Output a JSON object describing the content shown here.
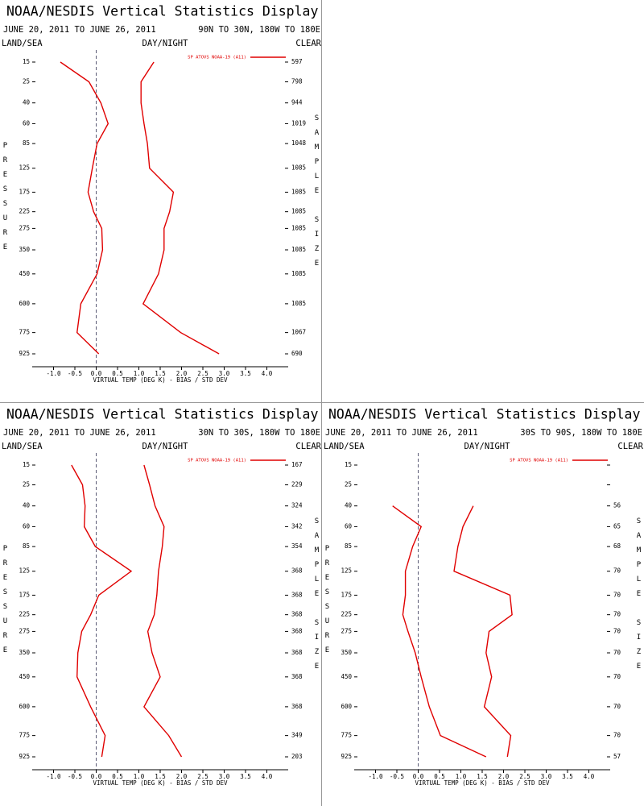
{
  "chart_data": [
    {
      "type": "line",
      "title": "NOAA/NESDIS Vertical Statistics Display",
      "subtitle": "JUNE 20, 2011 TO JUNE 26, 2011",
      "region": "90N TO 30N, 180W TO 180E",
      "land_sea": "LAND/SEA",
      "day_night": "DAY/NIGHT",
      "clear": "CLEAR",
      "xlabel": "VIRTUAL TEMP (DEG K) - BIAS / STD DEV",
      "ylabel": "PRESSURE",
      "y2label": "SAMPLE SIZE",
      "xlim": [
        -1.5,
        4.5
      ],
      "xticks": [
        {
          "value": -1,
          "label": "-1.0"
        },
        -0.5,
        {
          "value": 0,
          "label": "0.0"
        },
        0.5,
        {
          "value": 1,
          "label": "1.0"
        },
        1.5,
        {
          "value": 2,
          "label": "2.0"
        },
        2.5,
        {
          "value": 3,
          "label": "3.0"
        },
        3.5,
        {
          "value": 4,
          "label": "4.0"
        }
      ],
      "ylim": [
        15,
        925
      ],
      "yticks": [
        15,
        25,
        40,
        60,
        85,
        125,
        175,
        225,
        275,
        350,
        450,
        600,
        775,
        925
      ],
      "y": [
        15,
        25,
        40,
        60,
        85,
        125,
        175,
        225,
        275,
        350,
        450,
        600,
        775,
        925
      ],
      "series": [
        {
          "name": "SP ATOVS NOAA-19 (A11)",
          "color": "#e00000",
          "values": [
            -0.84,
            -0.17,
            0.11,
            0.28,
            0.02,
            -0.09,
            -0.19,
            -0.06,
            0.13,
            0.15,
            0.02,
            -0.36,
            -0.45,
            0.06
          ],
          "std_dev": [
            1.35,
            1.05,
            1.05,
            1.12,
            1.2,
            1.25,
            1.81,
            1.72,
            1.59,
            1.59,
            1.46,
            1.1,
            1.98,
            2.88
          ]
        }
      ],
      "sample_size": [
        597,
        798,
        944,
        1019,
        1048,
        1085,
        1085,
        1085,
        1085,
        1085,
        1085,
        1085,
        1067,
        690
      ]
    },
    {
      "type": "line",
      "title": "NOAA/NESDIS Vertical Statistics Display",
      "subtitle": "JUNE 20, 2011 TO JUNE 26, 2011",
      "region": "30N TO 30S, 180W TO 180E",
      "land_sea": "LAND/SEA",
      "day_night": "DAY/NIGHT",
      "clear": "CLEAR",
      "xlabel": "VIRTUAL TEMP (DEG K) - BIAS / STD DEV",
      "ylabel": "PRESSURE",
      "y2label": "SAMPLE SIZE",
      "xlim": [
        -1.5,
        4.5
      ],
      "xticks": [
        {
          "value": -1,
          "label": "-1.0"
        },
        -0.5,
        {
          "value": 0,
          "label": "0.0"
        },
        0.5,
        {
          "value": 1,
          "label": "1.0"
        },
        1.5,
        {
          "value": 2,
          "label": "2.0"
        },
        2.5,
        {
          "value": 3,
          "label": "3.0"
        },
        3.5,
        {
          "value": 4,
          "label": "4.0"
        }
      ],
      "ylim": [
        15,
        925
      ],
      "yticks": [
        15,
        25,
        40,
        60,
        85,
        125,
        175,
        225,
        275,
        350,
        450,
        600,
        775,
        925
      ],
      "y": [
        15,
        25,
        40,
        60,
        85,
        125,
        175,
        225,
        275,
        350,
        450,
        600,
        775,
        925
      ],
      "series": [
        {
          "name": "SP ATOVS NOAA-19 (A11)",
          "color": "#e00000",
          "values": [
            -0.58,
            -0.32,
            -0.26,
            -0.28,
            -0.02,
            0.82,
            0.06,
            -0.13,
            -0.34,
            -0.43,
            -0.45,
            -0.13,
            0.21,
            0.13
          ],
          "std_dev": [
            1.12,
            1.25,
            1.38,
            1.59,
            1.55,
            1.46,
            1.42,
            1.36,
            1.21,
            1.31,
            1.5,
            1.12,
            1.7,
            2.0
          ]
        }
      ],
      "sample_size": [
        167,
        229,
        324,
        342,
        354,
        368,
        368,
        368,
        368,
        368,
        368,
        368,
        349,
        203
      ]
    },
    {
      "type": "line",
      "title": "NOAA/NESDIS Vertical Statistics Display",
      "subtitle": "JUNE 20, 2011 TO JUNE 26, 2011",
      "region": "30S TO 90S, 180W TO 180E",
      "land_sea": "LAND/SEA",
      "day_night": "DAY/NIGHT",
      "clear": "CLEAR",
      "xlabel": "VIRTUAL TEMP (DEG K) - BIAS / STD DEV",
      "ylabel": "PRESSURE",
      "y2label": "SAMPLE SIZE",
      "xlim": [
        -1.5,
        4.5
      ],
      "xticks": [
        {
          "value": -1,
          "label": "-1.0"
        },
        -0.5,
        {
          "value": 0,
          "label": "0.0"
        },
        0.5,
        {
          "value": 1,
          "label": "1.0"
        },
        1.5,
        {
          "value": 2,
          "label": "2.0"
        },
        2.5,
        {
          "value": 3,
          "label": "3.0"
        },
        3.5,
        {
          "value": 4,
          "label": "4.0"
        }
      ],
      "ylim": [
        15,
        925
      ],
      "yticks": [
        15,
        25,
        40,
        60,
        85,
        125,
        175,
        225,
        275,
        350,
        450,
        600,
        775,
        925
      ],
      "y": [
        15,
        25,
        40,
        60,
        85,
        125,
        175,
        225,
        275,
        350,
        450,
        600,
        775,
        925
      ],
      "series": [
        {
          "name": "SP ATOVS NOAA-19 (A11)",
          "color": "#e00000",
          "values": [
            null,
            null,
            -0.6,
            0.07,
            -0.13,
            -0.3,
            -0.3,
            -0.36,
            -0.24,
            -0.07,
            0.07,
            0.26,
            0.52,
            1.59
          ],
          "std_dev": [
            null,
            null,
            1.29,
            1.05,
            0.93,
            0.84,
            2.15,
            2.2,
            1.66,
            1.59,
            1.72,
            1.55,
            2.17,
            2.09
          ]
        }
      ],
      "sample_size": [
        null,
        null,
        56,
        65,
        68,
        70,
        70,
        70,
        70,
        70,
        70,
        70,
        70,
        57
      ]
    }
  ]
}
